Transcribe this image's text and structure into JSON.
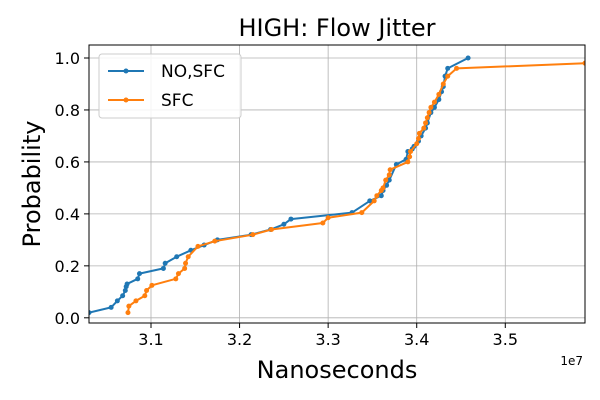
{
  "chart_data": {
    "type": "line",
    "title": "HIGH: Flow Jitter",
    "xlabel": "Nanoseconds",
    "ylabel": "Probability",
    "x_offset_label": "1e7",
    "xlim": [
      3.03,
      3.59
    ],
    "ylim": [
      -0.02,
      1.05
    ],
    "x_ticks": [
      3.1,
      3.2,
      3.3,
      3.4,
      3.5
    ],
    "x_tick_labels": [
      "3.1",
      "3.2",
      "3.3",
      "3.4",
      "3.5"
    ],
    "y_ticks": [
      0.0,
      0.2,
      0.4,
      0.6,
      0.8,
      1.0
    ],
    "y_tick_labels": [
      "0.0",
      "0.2",
      "0.4",
      "0.6",
      "0.8",
      "1.0"
    ],
    "grid": true,
    "legend_position": "top-left",
    "series": [
      {
        "name": "NO,SFC",
        "color": "#1f77b4",
        "x": [
          3.03,
          3.055,
          3.062,
          3.068,
          3.071,
          3.072,
          3.073,
          3.085,
          3.087,
          3.114,
          3.116,
          3.129,
          3.145,
          3.16,
          3.175,
          3.213,
          3.235,
          3.25,
          3.258,
          3.327,
          3.347,
          3.36,
          3.362,
          3.366,
          3.369,
          3.377,
          3.388,
          3.39,
          3.395,
          3.397,
          3.402,
          3.405,
          3.41,
          3.412,
          3.416,
          3.42,
          3.425,
          3.428,
          3.43,
          3.432,
          3.435,
          3.458
        ],
        "y": [
          0.02,
          0.04,
          0.065,
          0.085,
          0.105,
          0.12,
          0.13,
          0.15,
          0.17,
          0.19,
          0.21,
          0.235,
          0.26,
          0.28,
          0.3,
          0.32,
          0.34,
          0.36,
          0.38,
          0.405,
          0.45,
          0.47,
          0.49,
          0.51,
          0.53,
          0.59,
          0.61,
          0.64,
          0.65,
          0.66,
          0.68,
          0.7,
          0.73,
          0.75,
          0.79,
          0.81,
          0.84,
          0.87,
          0.89,
          0.93,
          0.96,
          1.0
        ]
      },
      {
        "name": "SFC",
        "color": "#ff7f0e",
        "x": [
          3.074,
          3.075,
          3.083,
          3.093,
          3.095,
          3.101,
          3.128,
          3.131,
          3.138,
          3.139,
          3.142,
          3.153,
          3.172,
          3.215,
          3.236,
          3.294,
          3.3,
          3.338,
          3.352,
          3.355,
          3.36,
          3.362,
          3.365,
          3.369,
          3.37,
          3.39,
          3.392,
          3.393,
          3.4,
          3.402,
          3.403,
          3.408,
          3.41,
          3.412,
          3.414,
          3.416,
          3.42,
          3.425,
          3.43,
          3.435,
          3.445,
          3.59
        ],
        "y": [
          0.02,
          0.045,
          0.065,
          0.085,
          0.105,
          0.125,
          0.15,
          0.17,
          0.19,
          0.21,
          0.235,
          0.275,
          0.295,
          0.32,
          0.34,
          0.365,
          0.385,
          0.405,
          0.45,
          0.47,
          0.49,
          0.5,
          0.53,
          0.55,
          0.57,
          0.6,
          0.62,
          0.64,
          0.67,
          0.69,
          0.71,
          0.73,
          0.75,
          0.77,
          0.79,
          0.81,
          0.83,
          0.86,
          0.9,
          0.93,
          0.96,
          0.98
        ]
      }
    ]
  }
}
